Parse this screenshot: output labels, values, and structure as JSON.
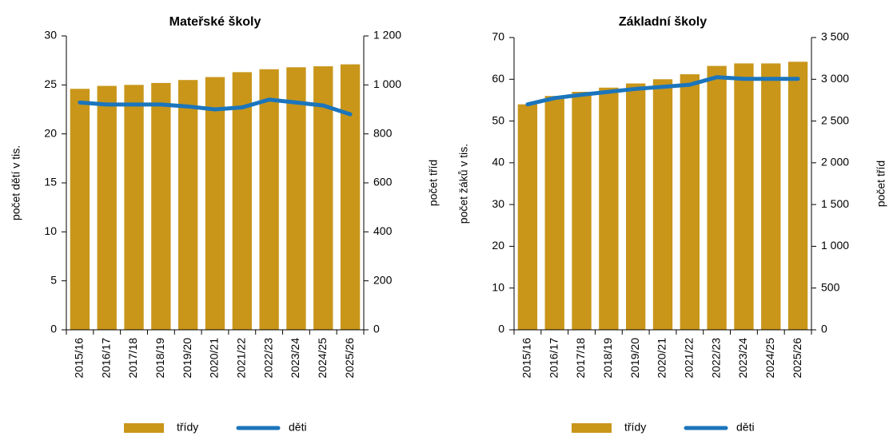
{
  "chart_data": [
    {
      "type": "bar",
      "title": "Mateřské školy",
      "ylabel": "počet dětí v tis.",
      "y2label": "počet tříd",
      "categories": [
        "2015/16",
        "2016/17",
        "2017/18",
        "2018/19",
        "2019/20",
        "2020/21",
        "2021/22",
        "2022/23",
        "2023/24",
        "2024/25",
        "2025/26"
      ],
      "series": [
        {
          "name": "třídy",
          "type": "bar",
          "axis": "y2",
          "color": "#c9961a",
          "values": [
            984,
            996,
            1000,
            1008,
            1020,
            1032,
            1052,
            1064,
            1072,
            1076,
            1084
          ]
        },
        {
          "name": "děti",
          "type": "line",
          "color": "#1b75bc",
          "values": [
            23.2,
            23.0,
            23.0,
            23.0,
            22.8,
            22.5,
            22.7,
            23.5,
            23.2,
            22.9,
            22.0
          ]
        }
      ],
      "ylim": [
        0,
        30
      ],
      "yticks": [
        0,
        5,
        10,
        15,
        20,
        25,
        30
      ],
      "y2lim": [
        0,
        1200
      ],
      "y2ticks": [
        0,
        200,
        400,
        600,
        800,
        {
          "value": 1000,
          "label": "1 000"
        },
        {
          "value": 1200,
          "label": "1 200"
        }
      ],
      "legend": "bottom"
    },
    {
      "type": "bar",
      "title": "Základní školy",
      "ylabel": "počet žáků v tis.",
      "y2label": "počet tříd",
      "categories": [
        "2015/16",
        "2016/17",
        "2017/18",
        "2018/19",
        "2019/20",
        "2020/21",
        "2021/22",
        "2022/23",
        "2023/24",
        "2024/25",
        "2025/26"
      ],
      "series": [
        {
          "name": "třídy",
          "type": "bar",
          "axis": "y2",
          "color": "#c9961a",
          "values": [
            2700,
            2800,
            2850,
            2900,
            2950,
            3000,
            3060,
            3160,
            3190,
            3190,
            3210
          ]
        },
        {
          "name": "děti",
          "type": "line",
          "color": "#1b75bc",
          "values": [
            54.0,
            55.5,
            56.3,
            57.0,
            57.7,
            58.2,
            58.7,
            60.5,
            60.1,
            60.1,
            60.1
          ]
        }
      ],
      "ylim": [
        0,
        70
      ],
      "yticks": [
        0,
        10,
        20,
        30,
        40,
        50,
        60,
        70
      ],
      "y2lim": [
        0,
        3500
      ],
      "y2ticks": [
        0,
        500,
        {
          "value": 1000,
          "label": "1 000"
        },
        {
          "value": 1500,
          "label": "1 500"
        },
        {
          "value": 2000,
          "label": "2 000"
        },
        {
          "value": 2500,
          "label": "2 500"
        },
        {
          "value": 3000,
          "label": "3 000"
        },
        {
          "value": 3500,
          "label": "3 500"
        }
      ],
      "legend": "bottom"
    }
  ]
}
